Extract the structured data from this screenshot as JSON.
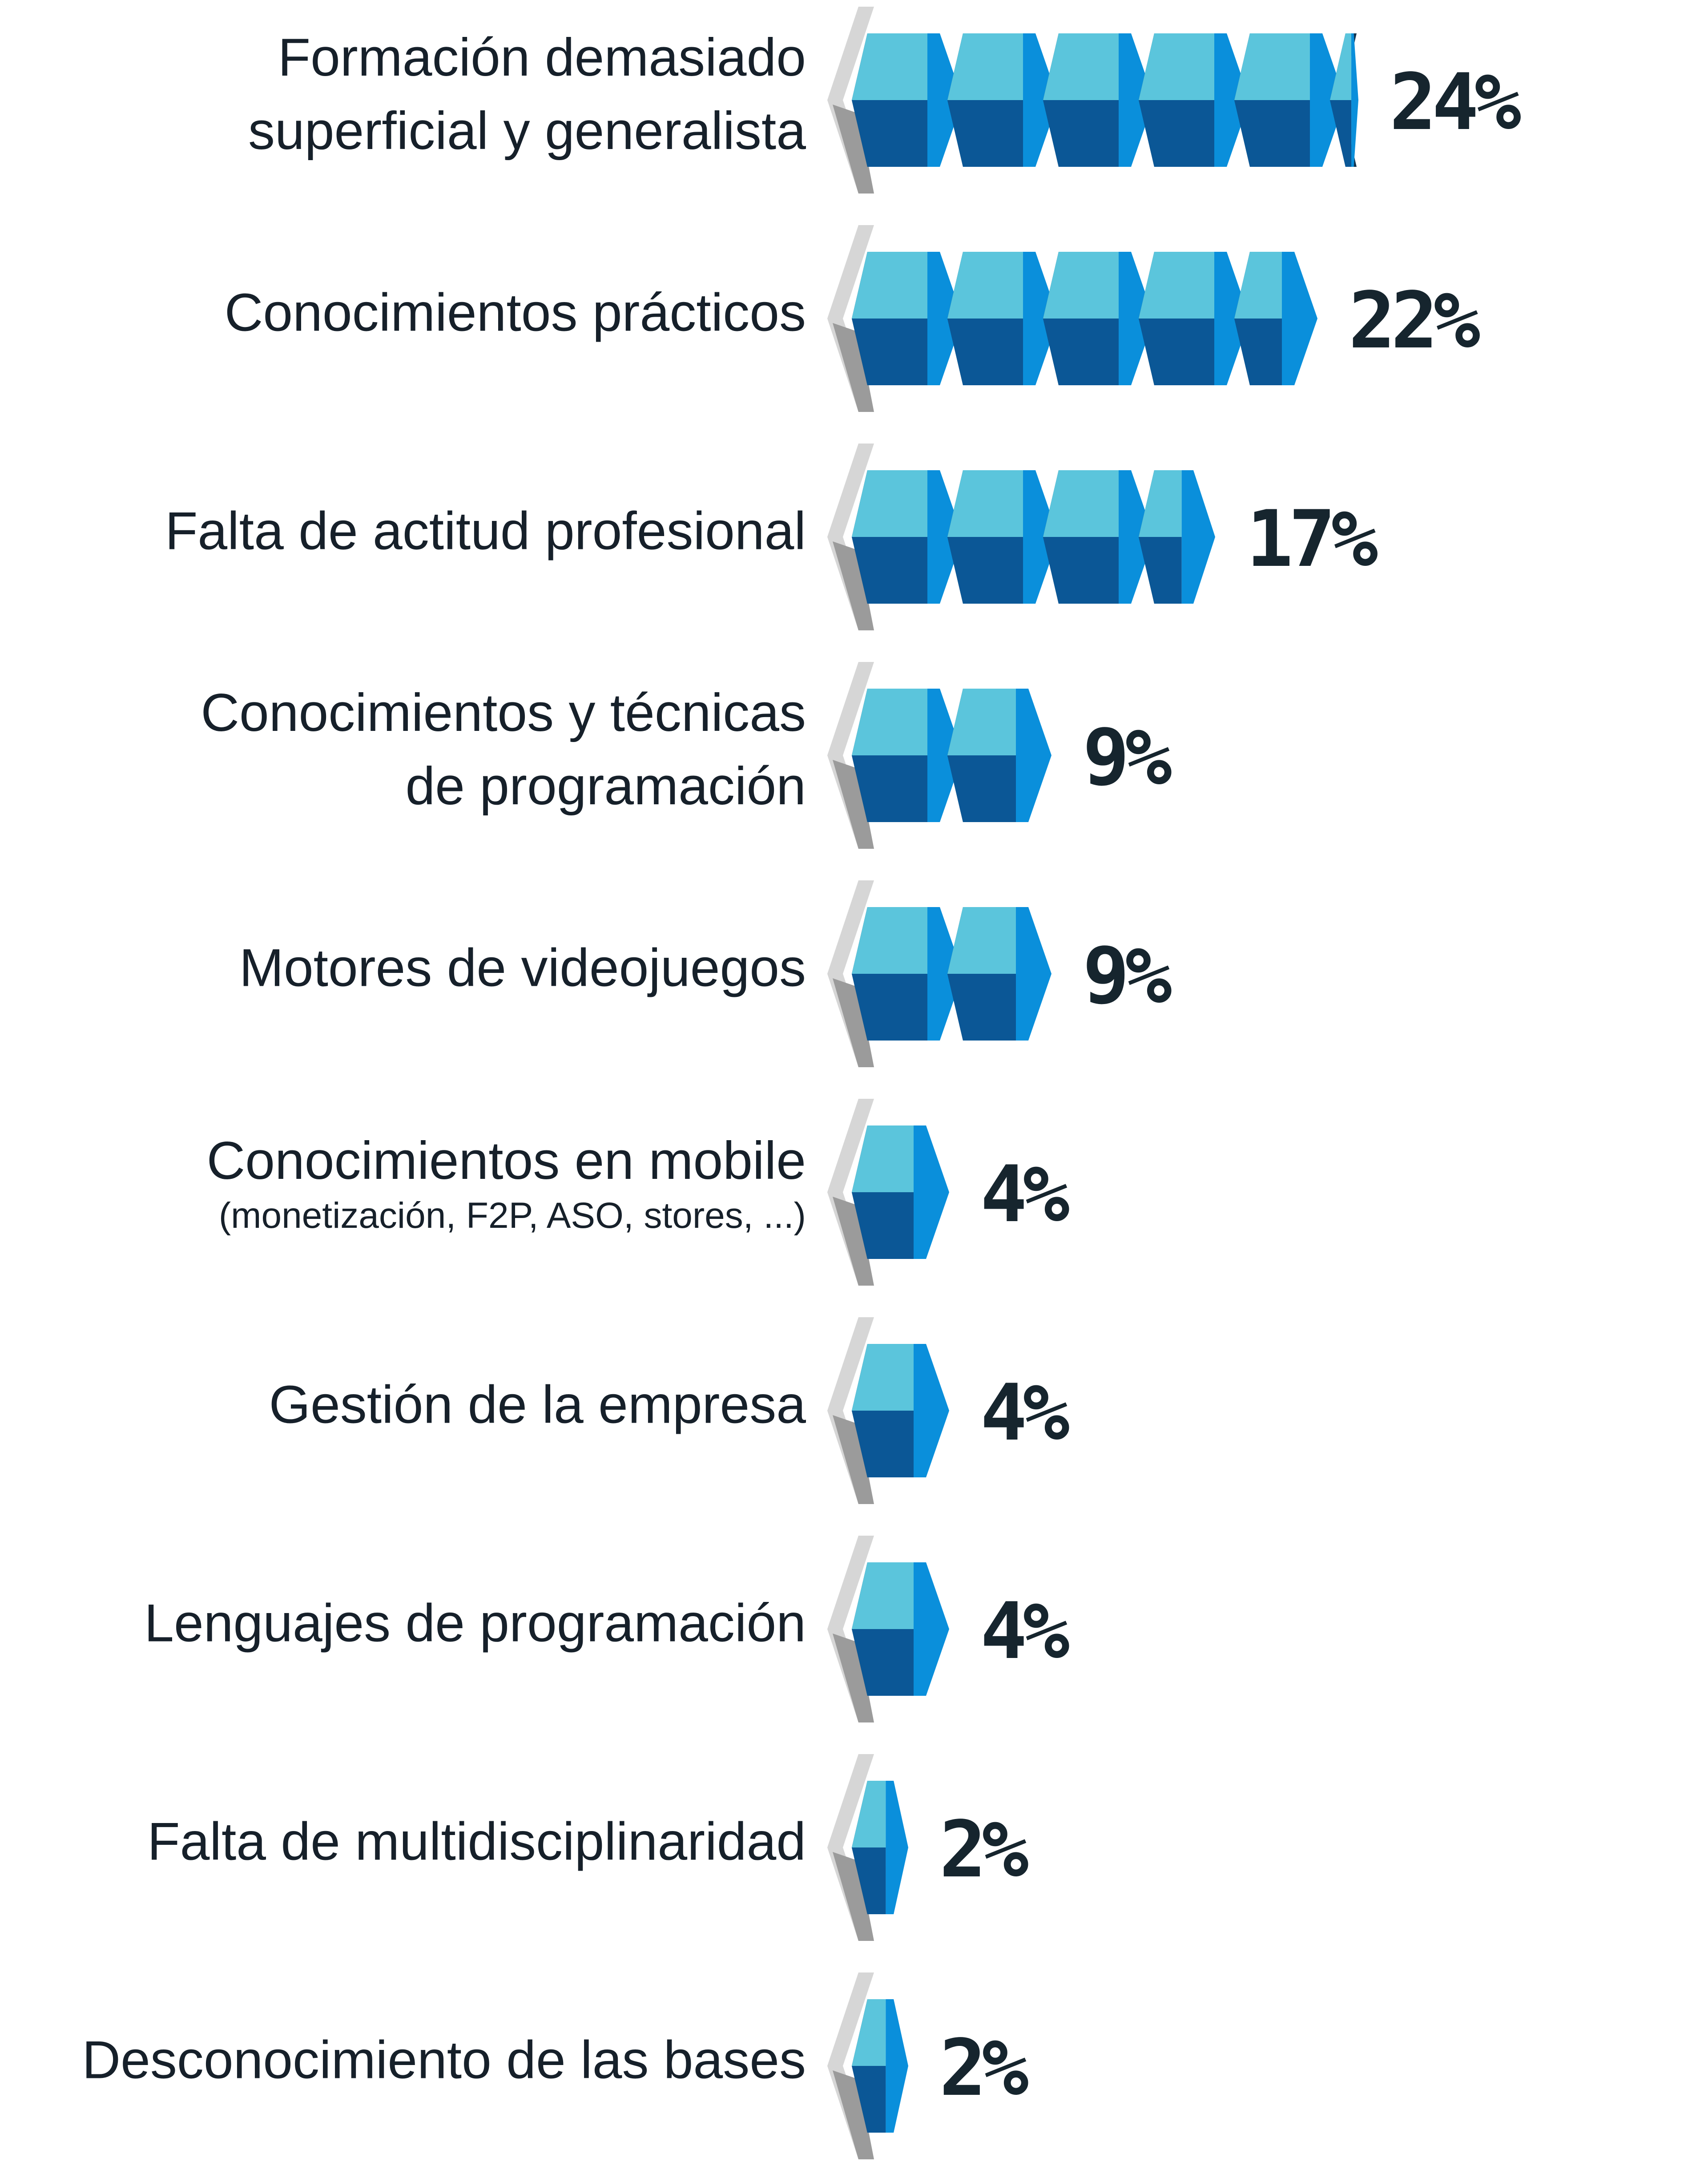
{
  "colors": {
    "cube_top": "#5bc5dc",
    "cube_front": "#0b5796",
    "cube_right": "#0a8fdb",
    "cube_gap": "#12334f",
    "base_light": "#d6d6d6",
    "base_dark": "#9b9b9b",
    "text": "#16202a",
    "value_text": "#16252e"
  },
  "chart_data": {
    "type": "bar",
    "orientation": "horizontal",
    "unit": "%",
    "categories": [
      {
        "label": "Formación demasiado superficial y generalista",
        "lines": [
          "Formación demasiado",
          "superficial y generalista"
        ],
        "sub": "",
        "value": 24,
        "value_label": "24%"
      },
      {
        "label": "Conocimientos prácticos",
        "lines": [
          "Conocimientos prácticos"
        ],
        "sub": "",
        "value": 22,
        "value_label": "22%"
      },
      {
        "label": "Falta de actitud profesional",
        "lines": [
          "Falta de actitud profesional"
        ],
        "sub": "",
        "value": 17,
        "value_label": "17%"
      },
      {
        "label": "Conocimientos y técnicas de programación",
        "lines": [
          "Conocimientos y técnicas",
          "de programación"
        ],
        "sub": "",
        "value": 9,
        "value_label": "9%"
      },
      {
        "label": "Motores de videojuegos",
        "lines": [
          "Motores de videojuegos"
        ],
        "sub": "",
        "value": 9,
        "value_label": "9%"
      },
      {
        "label": "Conocimientos en mobile",
        "lines": [
          "Conocimientos en mobile"
        ],
        "sub": "(monetización, F2P, ASO, stores, ...)",
        "value": 4,
        "value_label": "4%"
      },
      {
        "label": "Gestión de la empresa",
        "lines": [
          "Gestión de la empresa"
        ],
        "sub": "",
        "value": 4,
        "value_label": "4%"
      },
      {
        "label": "Lenguajes de programación",
        "lines": [
          "Lenguajes de programación"
        ],
        "sub": "",
        "value": 4,
        "value_label": "4%"
      },
      {
        "label": "Falta de multidisciplinaridad",
        "lines": [
          "Falta de multidisciplinaridad"
        ],
        "sub": "",
        "value": 2,
        "value_label": "2%"
      },
      {
        "label": "Desconocimiento de las bases",
        "lines": [
          "Desconocimiento de las bases"
        ],
        "sub": "",
        "value": 2,
        "value_label": "2%"
      }
    ],
    "legend": "none",
    "grid": false
  }
}
